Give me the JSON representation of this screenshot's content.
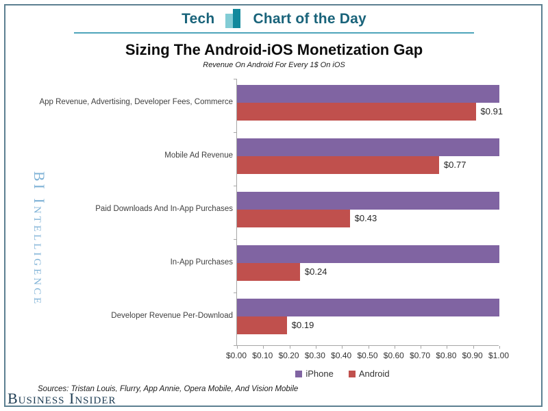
{
  "header": {
    "brand_left": "Tech",
    "brand_right": "Chart of the Day",
    "accent_dark_teal": "#19637a",
    "icon_light_teal": "#82ccd5",
    "icon_dark_teal": "#12899c",
    "rule_color": "#4da4ba"
  },
  "title": "Sizing The Android-iOS Monetization Gap",
  "subtitle": "Revenue On Android For Every 1$ On iOS",
  "watermark": "BI Intelligence",
  "footer": {
    "sources": "Sources: Tristan Louis, Flurry, App Annie, Opera Mobile, And Vision Mobile",
    "logo": "Business Insider"
  },
  "frame_color": "#5b7f90",
  "chart_data": {
    "type": "bar",
    "orientation": "horizontal",
    "title": "Sizing The Android-iOS Monetization Gap",
    "subtitle": "Revenue On Android For Every 1$ On iOS",
    "categories": [
      "App Revenue, Advertising, Developer Fees, Commerce",
      "Mobile Ad Revenue",
      "Paid Downloads And In-App Purchases",
      "In-App Purchases",
      "Developer Revenue Per-Download"
    ],
    "series": [
      {
        "name": "iPhone",
        "color": "#8064a2",
        "values": [
          1.0,
          1.0,
          1.0,
          1.0,
          1.0
        ]
      },
      {
        "name": "Android",
        "color": "#c0504d",
        "values": [
          0.91,
          0.77,
          0.43,
          0.24,
          0.19
        ],
        "data_labels": [
          "$0.91",
          "$0.77",
          "$0.43",
          "$0.24",
          "$0.19"
        ]
      }
    ],
    "xlim": [
      0,
      1.0
    ],
    "x_ticks": [
      "$0.00",
      "$0.10",
      "$0.20",
      "$0.30",
      "$0.40",
      "$0.50",
      "$0.60",
      "$0.70",
      "$0.80",
      "$0.90",
      "$1.00"
    ],
    "grid": false,
    "legend_position": "bottom",
    "axis_color": "#a6a6a6"
  }
}
